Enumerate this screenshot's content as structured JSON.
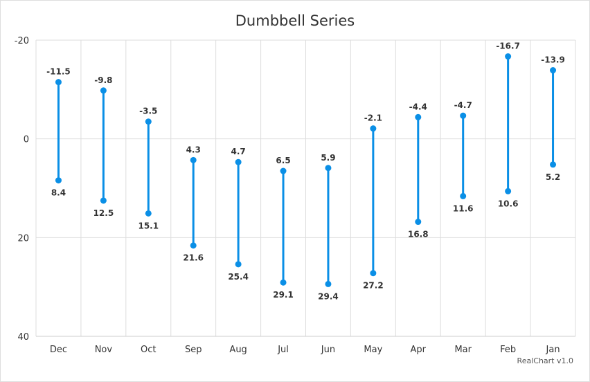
{
  "colors": {
    "series": "#0a8fe6",
    "grid": "#dddddd",
    "axis_text": "#333333",
    "label_text": "#333333"
  },
  "credits": "RealChart v1.0",
  "chart_data": {
    "type": "dumbbell",
    "title": "Dumbbell Series",
    "xlabel": "",
    "ylabel": "",
    "ylim": [
      -20,
      40
    ],
    "y_reversed": true,
    "y_ticks": [
      -20,
      0,
      20,
      40
    ],
    "y_tick_labels": [
      "-20",
      "0",
      "20",
      "40"
    ],
    "grid": true,
    "categories": [
      "Dec",
      "Nov",
      "Oct",
      "Sep",
      "Aug",
      "Jul",
      "Jun",
      "May",
      "Apr",
      "Mar",
      "Feb",
      "Jan"
    ],
    "low": [
      -11.5,
      -9.8,
      -3.5,
      4.3,
      4.7,
      6.5,
      5.9,
      -2.1,
      -4.4,
      -4.7,
      -16.7,
      -13.9
    ],
    "high": [
      8.4,
      12.5,
      15.1,
      21.6,
      25.4,
      29.1,
      29.4,
      27.2,
      16.8,
      11.6,
      10.6,
      5.2
    ],
    "low_labels": [
      "-11.5",
      "-9.8",
      "-3.5",
      "4.3",
      "4.7",
      "6.5",
      "5.9",
      "-2.1",
      "-4.4",
      "-4.7",
      "-16.7",
      "-13.9"
    ],
    "high_labels": [
      "8.4",
      "12.5",
      "15.1",
      "21.6",
      "25.4",
      "29.1",
      "29.4",
      "27.2",
      "16.8",
      "11.6",
      "10.6",
      "5.2"
    ]
  }
}
